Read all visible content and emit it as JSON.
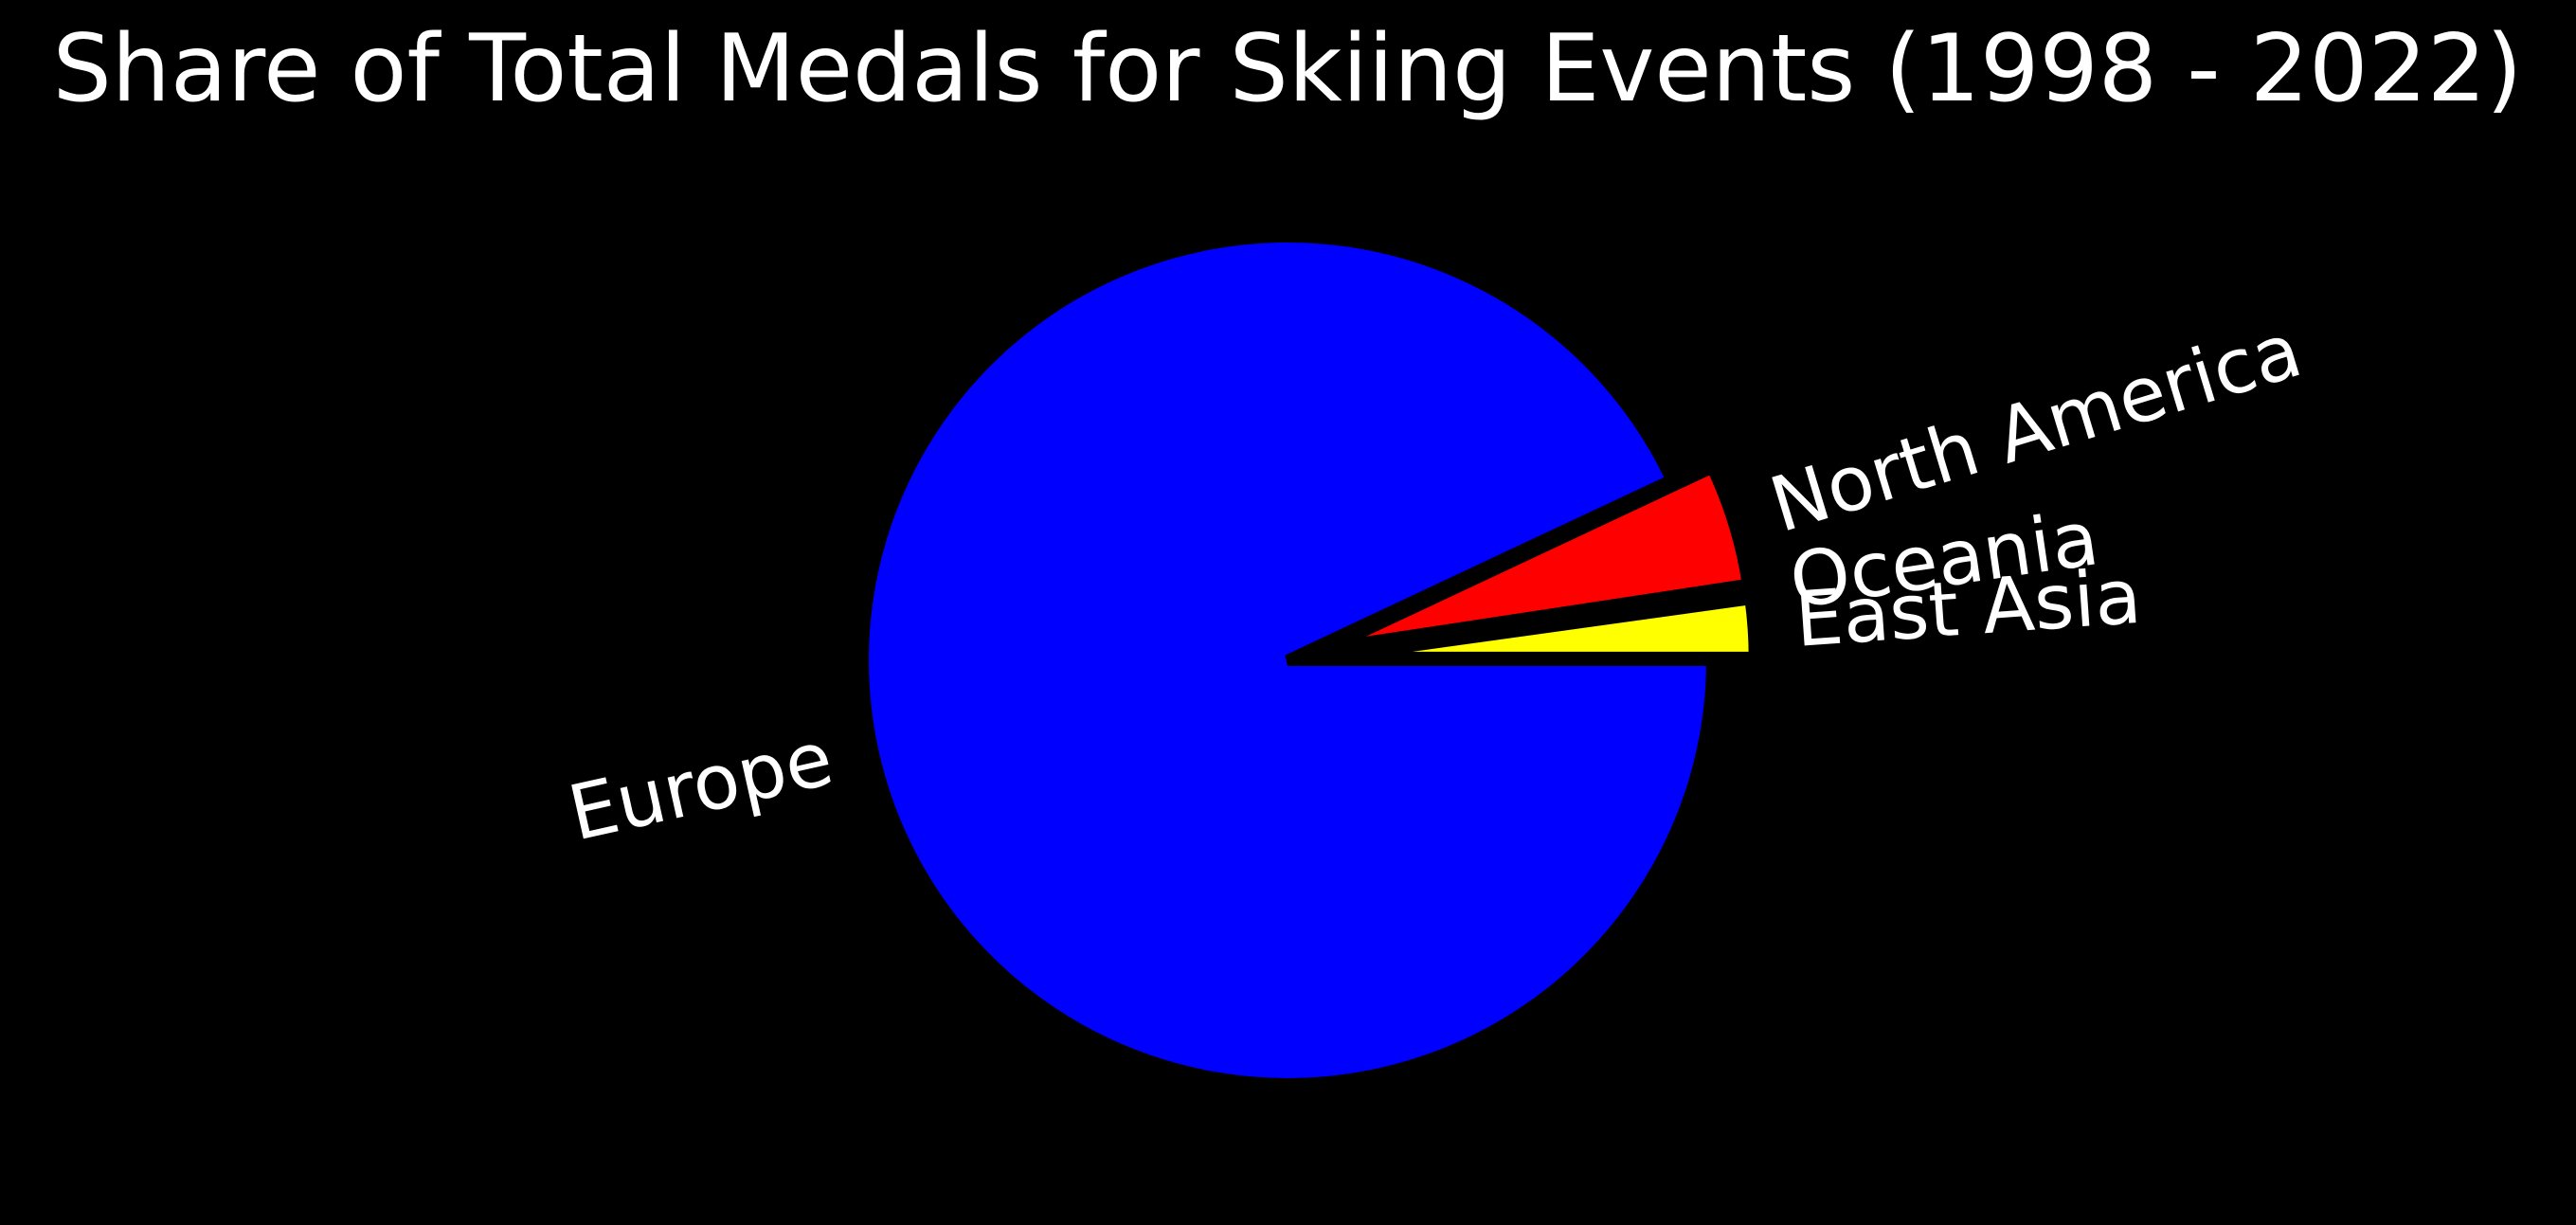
{
  "chart_data": {
    "type": "pie",
    "title": "Share of Total Medals for Skiing Events (1998 - 2022)",
    "slices": [
      {
        "label": "East Asia",
        "value": 2.2,
        "color": "#ffff00"
      },
      {
        "label": "Oceania",
        "value": 0.2,
        "color": "#0000ff"
      },
      {
        "label": "North America",
        "value": 4.6,
        "color": "#ff0000"
      },
      {
        "label": "Europe",
        "value": 93.0,
        "color": "#0000ff"
      }
    ],
    "explode": [
      0.1,
      0.1,
      0.1,
      0
    ],
    "start_angle": 0,
    "direction": "counterclockwise",
    "edge_color": "#000000",
    "background": "#000000"
  }
}
